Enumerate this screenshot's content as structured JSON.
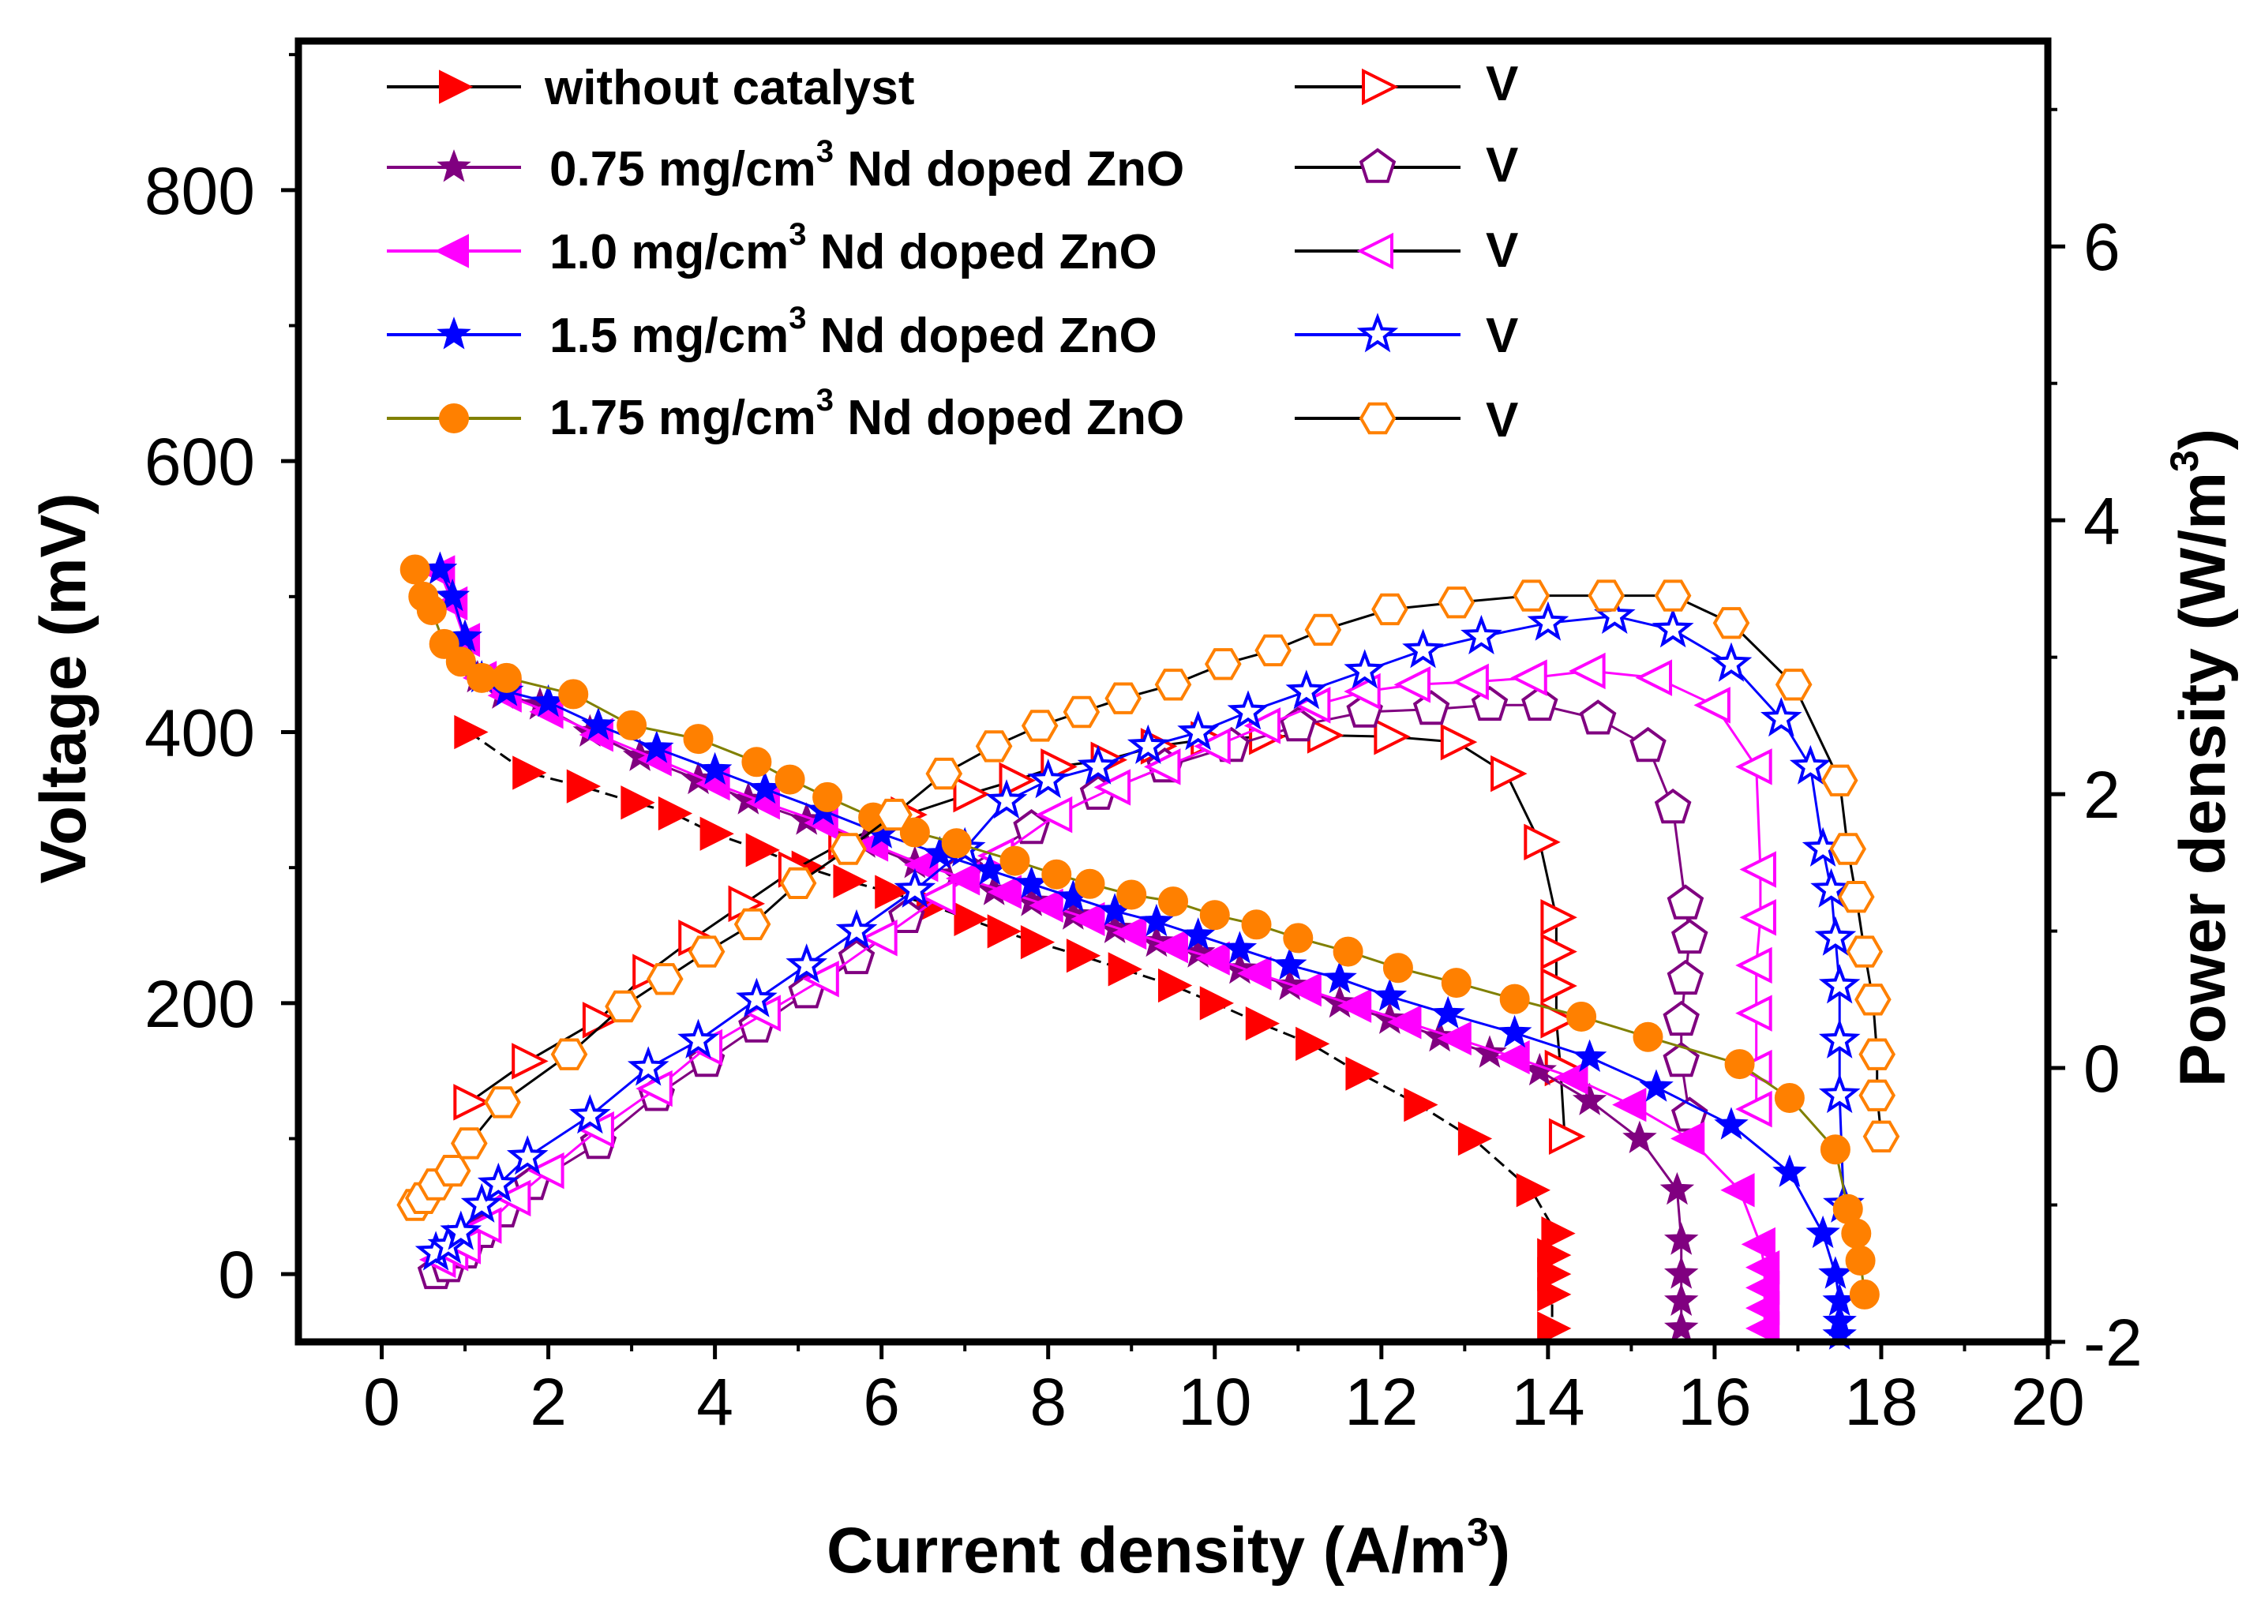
{
  "chart_data": {
    "type": "line",
    "title": "",
    "xlabel": "Current density (A/m³)",
    "xlabel_main": "Current density (A/m",
    "xlabel_sup": "3",
    "xlabel_end": ")",
    "ylabel_left": "Voltage (mV)",
    "ylabel_right": "Power density (W/m³)",
    "ylabel_right_main": "Power density (W/m",
    "ylabel_right_sup": "3",
    "ylabel_right_end": ")",
    "xlim": [
      -1,
      20
    ],
    "ylim_left": [
      -50,
      910
    ],
    "ylim_right": [
      -2,
      7.5
    ],
    "x_ticks": [
      "0",
      "2",
      "4",
      "6",
      "8",
      "10",
      "12",
      "14",
      "16",
      "18",
      "20"
    ],
    "y_left_ticks": [
      "0",
      "200",
      "400",
      "600",
      "800"
    ],
    "y_right_ticks": [
      "-2",
      "0",
      "2",
      "4",
      "6"
    ],
    "legend_position": "top-left",
    "series": [
      {
        "name": "without catalyst",
        "legend_voltage": "without catalyst",
        "legend_power": "V",
        "color": "#ff0000",
        "line_color": "#000000",
        "v_marker": "triangle-right-filled",
        "p_marker": "triangle-right-open",
        "voltage": {
          "x": [
            1.05,
            1.75,
            2.4,
            3.05,
            3.5,
            4.0,
            4.55,
            5.1,
            5.6,
            6.1,
            6.6,
            7.05,
            7.45,
            7.85,
            8.4,
            8.9,
            9.5,
            10.0,
            10.55,
            11.15,
            11.75,
            12.45,
            13.1,
            13.8,
            14.1,
            14.05,
            14.05,
            14.05,
            14.05
          ],
          "y": [
            400,
            370,
            360,
            348,
            340,
            325,
            313,
            300,
            290,
            282,
            272,
            262,
            253,
            245,
            235,
            225,
            213,
            200,
            185,
            170,
            148,
            125,
            100,
            62,
            30,
            14,
            0,
            -15,
            -40
          ]
        },
        "power": {
          "x": [
            1.05,
            1.75,
            2.6,
            3.2,
            3.75,
            4.35,
            4.95,
            5.55,
            6.3,
            7.05,
            7.6,
            8.1,
            8.7,
            9.3,
            9.9,
            10.6,
            11.3,
            12.1,
            12.9,
            13.5,
            13.9,
            14.1,
            14.1,
            14.1,
            14.1,
            14.15,
            14.2
          ],
          "y": [
            -0.25,
            0.05,
            0.35,
            0.7,
            0.95,
            1.2,
            1.45,
            1.65,
            1.85,
            2.0,
            2.1,
            2.2,
            2.25,
            2.35,
            2.4,
            2.42,
            2.43,
            2.42,
            2.38,
            2.15,
            1.65,
            1.1,
            0.85,
            0.6,
            0.35,
            0.0,
            -0.5
          ]
        }
      },
      {
        "name": "0.75 mg/cm³ Nd doped ZnO",
        "legend_voltage_main": "0.75 mg/cm",
        "legend_voltage_sup": "3",
        "legend_voltage_end": " Nd doped ZnO",
        "legend_power": "V",
        "color": "#800080",
        "line_color": "#800080",
        "v_marker": "star-filled",
        "p_marker": "pentagon-open",
        "voltage": {
          "x": [
            0.7,
            0.85,
            1.0,
            1.15,
            1.45,
            1.9,
            2.5,
            3.1,
            3.8,
            4.4,
            5.1,
            5.8,
            6.4,
            6.9,
            7.35,
            7.8,
            8.3,
            8.8,
            9.3,
            9.8,
            10.3,
            10.9,
            11.5,
            12.1,
            12.7,
            13.3,
            13.9,
            14.5,
            15.1,
            15.55,
            15.6,
            15.6,
            15.6,
            15.6
          ],
          "y": [
            520,
            500,
            470,
            440,
            428,
            420,
            400,
            382,
            365,
            350,
            335,
            318,
            303,
            295,
            283,
            275,
            265,
            255,
            245,
            237,
            225,
            213,
            200,
            188,
            175,
            163,
            150,
            128,
            100,
            62,
            25,
            0,
            -20,
            -40
          ]
        },
        "power": {
          "x": [
            0.65,
            0.8,
            1.0,
            1.2,
            1.45,
            1.8,
            2.6,
            3.3,
            3.9,
            4.5,
            5.1,
            5.7,
            6.3,
            7.0,
            7.8,
            8.6,
            9.4,
            10.2,
            11.0,
            11.8,
            12.6,
            13.3,
            13.9,
            14.6,
            15.2,
            15.5,
            15.65,
            15.7,
            15.65,
            15.6,
            15.6,
            15.7
          ],
          "y": [
            -1.5,
            -1.45,
            -1.35,
            -1.2,
            -1.05,
            -0.85,
            -0.55,
            -0.2,
            0.05,
            0.3,
            0.55,
            0.8,
            1.1,
            1.45,
            1.75,
            2.0,
            2.2,
            2.35,
            2.5,
            2.6,
            2.62,
            2.65,
            2.65,
            2.55,
            2.35,
            1.9,
            1.2,
            0.95,
            0.65,
            0.35,
            0.05,
            -0.35
          ]
        }
      },
      {
        "name": "1.0 mg/cm³ Nd doped ZnO",
        "legend_voltage_main": "1.0 mg/cm",
        "legend_voltage_sup": "3",
        "legend_voltage_end": " Nd doped ZnO",
        "legend_power": "V",
        "color": "#ff00ff",
        "line_color": "#ff00ff",
        "v_marker": "triangle-left-filled",
        "p_marker": "triangle-left-open",
        "voltage": {
          "x": [
            0.7,
            0.85,
            1.0,
            1.2,
            1.5,
            2.0,
            2.6,
            3.3,
            4.0,
            4.6,
            5.3,
            5.9,
            6.5,
            7.0,
            7.5,
            8.0,
            8.5,
            9.0,
            9.5,
            10.0,
            10.5,
            11.1,
            11.7,
            12.3,
            12.9,
            13.6,
            14.3,
            15.0,
            15.7,
            16.3,
            16.55,
            16.6,
            16.6,
            16.6,
            16.6
          ],
          "y": [
            518,
            495,
            468,
            440,
            427,
            415,
            398,
            380,
            362,
            348,
            333,
            317,
            302,
            292,
            282,
            272,
            262,
            252,
            242,
            233,
            222,
            210,
            198,
            186,
            174,
            160,
            145,
            125,
            100,
            62,
            22,
            5,
            -10,
            -25,
            -40
          ]
        },
        "power": {
          "x": [
            0.7,
            0.85,
            1.0,
            1.25,
            1.6,
            2.0,
            2.6,
            3.3,
            3.9,
            4.6,
            5.3,
            6.0,
            6.7,
            7.4,
            8.1,
            8.8,
            9.4,
            10.0,
            10.6,
            11.2,
            11.8,
            12.4,
            13.1,
            13.8,
            14.5,
            15.3,
            16.0,
            16.5,
            16.55,
            16.55,
            16.5,
            16.5,
            16.5,
            16.5
          ],
          "y": [
            -1.4,
            -1.35,
            -1.3,
            -1.15,
            -0.95,
            -0.75,
            -0.45,
            -0.15,
            0.15,
            0.4,
            0.65,
            0.95,
            1.25,
            1.55,
            1.85,
            2.05,
            2.2,
            2.35,
            2.5,
            2.65,
            2.75,
            2.8,
            2.82,
            2.85,
            2.9,
            2.85,
            2.65,
            2.2,
            1.45,
            1.1,
            0.75,
            0.4,
            0.0,
            -0.3
          ]
        }
      },
      {
        "name": "1.5 mg/cm³ Nd doped ZnO",
        "legend_voltage_main": "1.5 mg/cm",
        "legend_voltage_sup": "3",
        "legend_voltage_end": " Nd doped ZnO",
        "legend_power": "V",
        "color": "#0000ff",
        "line_color": "#0000ff",
        "v_marker": "star-filled",
        "p_marker": "star-open",
        "voltage": {
          "x": [
            0.7,
            0.85,
            1.0,
            1.2,
            1.5,
            2.0,
            2.6,
            3.3,
            4.0,
            4.6,
            5.3,
            6.0,
            6.7,
            7.3,
            7.8,
            8.3,
            8.8,
            9.3,
            9.8,
            10.3,
            10.9,
            11.5,
            12.1,
            12.8,
            13.6,
            14.5,
            15.3,
            16.2,
            16.9,
            17.3,
            17.45,
            17.5,
            17.5,
            17.5
          ],
          "y": [
            520,
            500,
            470,
            440,
            430,
            422,
            405,
            388,
            372,
            358,
            342,
            325,
            310,
            298,
            288,
            278,
            268,
            260,
            250,
            240,
            228,
            218,
            205,
            192,
            178,
            160,
            138,
            110,
            75,
            30,
            0,
            -20,
            -35,
            -45
          ]
        },
        "power": {
          "x": [
            0.65,
            0.8,
            0.95,
            1.2,
            1.4,
            1.75,
            2.5,
            3.2,
            3.8,
            4.5,
            5.1,
            5.7,
            6.4,
            7.0,
            7.5,
            8.0,
            8.6,
            9.2,
            9.8,
            10.4,
            11.1,
            11.8,
            12.5,
            13.2,
            14.0,
            14.8,
            15.5,
            16.2,
            16.8,
            17.15,
            17.3,
            17.4,
            17.45,
            17.5,
            17.5,
            17.5,
            17.55
          ],
          "y": [
            -1.35,
            -1.3,
            -1.2,
            -1.0,
            -0.85,
            -0.65,
            -0.35,
            0.0,
            0.2,
            0.5,
            0.75,
            1.0,
            1.3,
            1.6,
            1.95,
            2.1,
            2.2,
            2.35,
            2.45,
            2.6,
            2.75,
            2.9,
            3.05,
            3.15,
            3.25,
            3.3,
            3.2,
            2.95,
            2.55,
            2.2,
            1.6,
            1.3,
            0.95,
            0.6,
            0.2,
            -0.2,
            -1.0
          ]
        }
      },
      {
        "name": "1.75 mg/cm³ Nd doped ZnO",
        "legend_voltage_main": "1.75 mg/cm",
        "legend_voltage_sup": "3",
        "legend_voltage_end": " Nd doped ZnO",
        "legend_power": "V",
        "color": "#ff8000",
        "line_color": "#808000",
        "v_marker": "circle-filled",
        "p_marker": "hexagon-open",
        "voltage": {
          "x": [
            0.4,
            0.5,
            0.6,
            0.75,
            0.95,
            1.2,
            1.5,
            2.3,
            3.0,
            3.8,
            4.5,
            4.9,
            5.35,
            5.9,
            6.4,
            6.9,
            7.6,
            8.1,
            8.5,
            9.0,
            9.5,
            10.0,
            10.5,
            11.0,
            11.6,
            12.2,
            12.9,
            13.6,
            14.4,
            15.2,
            16.3,
            16.9,
            17.45,
            17.6,
            17.7,
            17.75,
            17.8
          ],
          "y": [
            520,
            500,
            490,
            465,
            452,
            440,
            440,
            428,
            405,
            395,
            378,
            365,
            352,
            337,
            326,
            318,
            305,
            295,
            288,
            280,
            275,
            265,
            258,
            248,
            238,
            226,
            215,
            203,
            190,
            175,
            155,
            130,
            92,
            48,
            30,
            10,
            -15
          ]
        },
        "power": {
          "x": [
            0.4,
            0.5,
            0.65,
            0.85,
            1.05,
            1.45,
            2.25,
            2.9,
            3.4,
            3.9,
            4.45,
            5.0,
            5.6,
            6.15,
            6.75,
            7.35,
            7.9,
            8.4,
            8.9,
            9.5,
            10.1,
            10.7,
            11.3,
            12.1,
            12.9,
            13.8,
            14.7,
            15.5,
            16.2,
            16.95,
            17.5,
            17.6,
            17.7,
            17.8,
            17.9,
            17.95,
            17.95,
            18.0
          ],
          "y": [
            -1.0,
            -0.95,
            -0.85,
            -0.75,
            -0.55,
            -0.25,
            0.1,
            0.45,
            0.65,
            0.85,
            1.05,
            1.35,
            1.6,
            1.85,
            2.15,
            2.35,
            2.5,
            2.6,
            2.7,
            2.8,
            2.95,
            3.05,
            3.2,
            3.35,
            3.4,
            3.45,
            3.45,
            3.45,
            3.25,
            2.8,
            2.1,
            1.6,
            1.25,
            0.85,
            0.5,
            0.1,
            -0.2,
            -0.5
          ]
        }
      }
    ]
  }
}
